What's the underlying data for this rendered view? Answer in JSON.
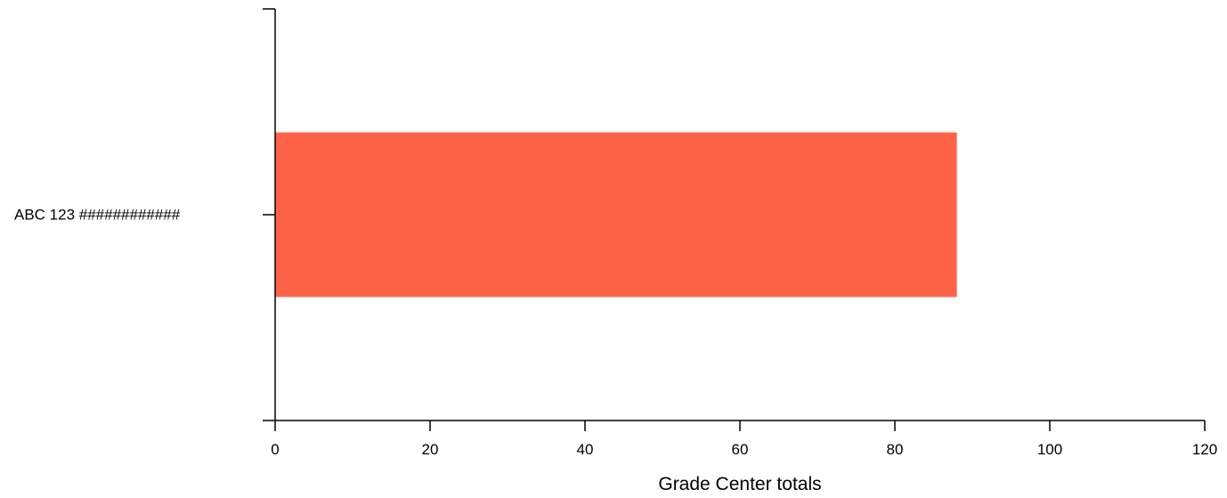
{
  "chart_data": {
    "type": "bar",
    "orientation": "horizontal",
    "categories": [
      "ABC 123 ############"
    ],
    "values": [
      88
    ],
    "xlabel": "Grade Center totals",
    "ylabel": "",
    "xlim": [
      0,
      120
    ],
    "xticks": [
      "0",
      "20",
      "40",
      "60",
      "80",
      "100",
      "120"
    ],
    "grid": false,
    "bar_color": "#ff6347",
    "axis_color": "#000000"
  }
}
